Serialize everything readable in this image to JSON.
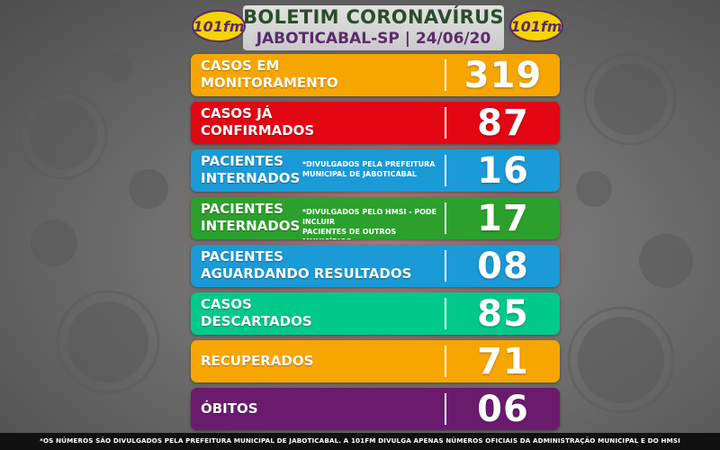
{
  "header": {
    "title": "BOLETIM CORONAVÍRUS",
    "subtitle": "JABOTICABAL-SP | 24/06/20",
    "logo_text": "101fm"
  },
  "rows": [
    {
      "label": "CASOS EM\nMONITORAMENTO",
      "note": "",
      "value": "319",
      "color": "#f7a600"
    },
    {
      "label": "CASOS JÁ\nCONFIRMADOS",
      "note": "",
      "value": "87",
      "color": "#e30613"
    },
    {
      "label": "PACIENTES\nINTERNADOS",
      "note": "*DIVULGADOS PELA PREFEITURA\nMUNICIPAL DE JABOTICABAL",
      "value": "16",
      "color": "#1a9ad6"
    },
    {
      "label": "PACIENTES\nINTERNADOS",
      "note": "*DIVULGADOS PELO HMSI - PODE INCLUIR\nPACIENTES DE OUTROS MUNICÍPIOS",
      "value": "17",
      "color": "#2ca02c"
    },
    {
      "label": "PACIENTES\nAGUARDANDO RESULTADOS",
      "note": "",
      "value": "08",
      "color": "#1a9ad6"
    },
    {
      "label": "CASOS\nDESCARTADOS",
      "note": "",
      "value": "85",
      "color": "#00c98a"
    },
    {
      "label": "RECUPERADOS",
      "note": "",
      "value": "71",
      "color": "#f7a600"
    },
    {
      "label": "ÓBITOS",
      "note": "",
      "value": "06",
      "color": "#6b1b6e"
    }
  ],
  "footer": {
    "text": "*OS NÚMEROS SÃO DIVULGADOS PELA PREFEITURA MUNICIPAL DE JABOTICABAL. A 101FM DIVULGA APENAS NÚMEROS OFICIAIS DA ADMINISTRAÇÃO MUNICIPAL E DO HMSI"
  },
  "colors": {
    "title_green": "#2a4d2a",
    "subtitle_purple": "#5b2b6b",
    "logo_yellow": "#f5d400",
    "logo_purple": "#5b2b6b"
  }
}
